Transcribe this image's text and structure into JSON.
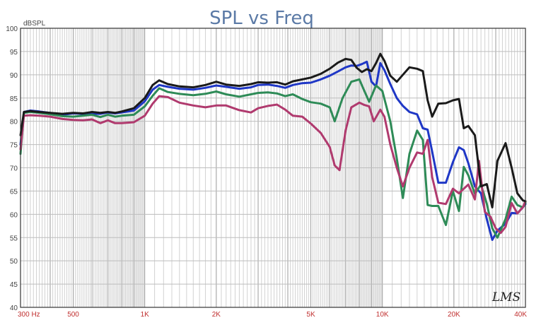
{
  "chart_data": {
    "type": "line",
    "title": "SPL vs Freq",
    "ylabel": "dBSPL",
    "xlabel": "",
    "xscale": "log",
    "xlim": [
      300,
      40000
    ],
    "ylim": [
      40,
      100
    ],
    "yticks": [
      40,
      45,
      50,
      55,
      60,
      65,
      70,
      75,
      80,
      85,
      90,
      95,
      100
    ],
    "xticks": [
      {
        "value": 300,
        "label": "300 Hz"
      },
      {
        "value": 500,
        "label": "500"
      },
      {
        "value": 1000,
        "label": "1K"
      },
      {
        "value": 2000,
        "label": "2K"
      },
      {
        "value": 5000,
        "label": "5K"
      },
      {
        "value": 10000,
        "label": "10K"
      },
      {
        "value": 20000,
        "label": "20K"
      },
      {
        "value": 40000,
        "label": "40K"
      }
    ],
    "grid": true,
    "watermark": "LMS",
    "series": [
      {
        "color": "#1a1a1a",
        "points": [
          [
            300,
            77
          ],
          [
            310,
            82
          ],
          [
            330,
            82.2
          ],
          [
            360,
            82
          ],
          [
            400,
            81.8
          ],
          [
            450,
            81.6
          ],
          [
            500,
            81.8
          ],
          [
            550,
            81.7
          ],
          [
            600,
            82
          ],
          [
            650,
            81.8
          ],
          [
            700,
            82
          ],
          [
            750,
            81.8
          ],
          [
            800,
            82.1
          ],
          [
            900,
            82.8
          ],
          [
            1000,
            85
          ],
          [
            1080,
            87.8
          ],
          [
            1150,
            88.8
          ],
          [
            1250,
            88
          ],
          [
            1400,
            87.5
          ],
          [
            1600,
            87.3
          ],
          [
            1800,
            87.8
          ],
          [
            2000,
            88.5
          ],
          [
            2200,
            87.9
          ],
          [
            2500,
            87.6
          ],
          [
            2800,
            88
          ],
          [
            3000,
            88.4
          ],
          [
            3300,
            88.3
          ],
          [
            3600,
            88.4
          ],
          [
            3900,
            87.9
          ],
          [
            4200,
            88.6
          ],
          [
            4600,
            89
          ],
          [
            5000,
            89.4
          ],
          [
            5500,
            90.2
          ],
          [
            6000,
            91.3
          ],
          [
            6500,
            92.6
          ],
          [
            7000,
            93.4
          ],
          [
            7400,
            93.2
          ],
          [
            7800,
            91.5
          ],
          [
            8200,
            90.6
          ],
          [
            8600,
            91.2
          ],
          [
            9000,
            90.8
          ],
          [
            9400,
            92.5
          ],
          [
            9800,
            94.5
          ],
          [
            10200,
            93
          ],
          [
            10800,
            89.8
          ],
          [
            11500,
            88.5
          ],
          [
            12200,
            90
          ],
          [
            13000,
            91.6
          ],
          [
            14000,
            91.3
          ],
          [
            14800,
            90.8
          ],
          [
            15500,
            84.5
          ],
          [
            16200,
            81
          ],
          [
            17200,
            83.8
          ],
          [
            18500,
            83.9
          ],
          [
            19800,
            84.5
          ],
          [
            21000,
            84.8
          ],
          [
            22000,
            78.5
          ],
          [
            23000,
            79
          ],
          [
            24500,
            77
          ],
          [
            26000,
            66
          ],
          [
            27500,
            66.5
          ],
          [
            29000,
            61.5
          ],
          [
            30500,
            71.5
          ],
          [
            33000,
            75.3
          ],
          [
            35000,
            70
          ],
          [
            37000,
            64.5
          ],
          [
            39000,
            63
          ],
          [
            40000,
            62.8
          ]
        ]
      },
      {
        "color": "#1f37c6",
        "points": [
          [
            300,
            75
          ],
          [
            310,
            82
          ],
          [
            330,
            82.3
          ],
          [
            360,
            82.1
          ],
          [
            400,
            81.8
          ],
          [
            450,
            81.4
          ],
          [
            500,
            81.7
          ],
          [
            550,
            81.6
          ],
          [
            600,
            81.6
          ],
          [
            650,
            81.6
          ],
          [
            700,
            81.9
          ],
          [
            750,
            81.7
          ],
          [
            800,
            81.9
          ],
          [
            900,
            82.3
          ],
          [
            1000,
            84.3
          ],
          [
            1080,
            86.8
          ],
          [
            1150,
            87.8
          ],
          [
            1250,
            87.4
          ],
          [
            1400,
            87
          ],
          [
            1600,
            86.8
          ],
          [
            1800,
            87.2
          ],
          [
            2000,
            87.7
          ],
          [
            2200,
            87.4
          ],
          [
            2500,
            87
          ],
          [
            2800,
            87.3
          ],
          [
            3000,
            87.8
          ],
          [
            3300,
            87.9
          ],
          [
            3600,
            87.6
          ],
          [
            3900,
            87.2
          ],
          [
            4200,
            87.8
          ],
          [
            4600,
            88.2
          ],
          [
            5000,
            88.3
          ],
          [
            5500,
            89
          ],
          [
            6000,
            89.8
          ],
          [
            6500,
            90.7
          ],
          [
            7000,
            91.6
          ],
          [
            7400,
            92
          ],
          [
            7800,
            91.9
          ],
          [
            8200,
            92.3
          ],
          [
            8600,
            92.8
          ],
          [
            9000,
            88.5
          ],
          [
            9400,
            87.5
          ],
          [
            9800,
            92.5
          ],
          [
            10200,
            91
          ],
          [
            10800,
            88
          ],
          [
            11500,
            85
          ],
          [
            12200,
            83.3
          ],
          [
            13000,
            82
          ],
          [
            14000,
            81.5
          ],
          [
            14800,
            78.5
          ],
          [
            15500,
            78.2
          ],
          [
            16200,
            73.5
          ],
          [
            17200,
            66.8
          ],
          [
            18500,
            66.8
          ],
          [
            19800,
            71.2
          ],
          [
            21000,
            74.4
          ],
          [
            22000,
            73.8
          ],
          [
            23000,
            71
          ],
          [
            24500,
            66
          ],
          [
            26000,
            64.5
          ],
          [
            27500,
            59
          ],
          [
            29000,
            54.5
          ],
          [
            30500,
            56.5
          ],
          [
            33000,
            58
          ],
          [
            35000,
            60.3
          ],
          [
            37000,
            60.2
          ],
          [
            39000,
            61.5
          ],
          [
            40000,
            62.2
          ]
        ]
      },
      {
        "color": "#2e8b57",
        "points": [
          [
            300,
            73
          ],
          [
            310,
            81.8
          ],
          [
            330,
            82
          ],
          [
            360,
            81.8
          ],
          [
            400,
            81.5
          ],
          [
            450,
            81.1
          ],
          [
            500,
            81
          ],
          [
            550,
            81.2
          ],
          [
            600,
            81.4
          ],
          [
            650,
            80.9
          ],
          [
            700,
            81.4
          ],
          [
            750,
            81
          ],
          [
            800,
            81.2
          ],
          [
            900,
            81.4
          ],
          [
            1000,
            83.2
          ],
          [
            1080,
            85.5
          ],
          [
            1150,
            87.1
          ],
          [
            1250,
            86.3
          ],
          [
            1400,
            85.9
          ],
          [
            1600,
            85.6
          ],
          [
            1800,
            85.9
          ],
          [
            2000,
            86.4
          ],
          [
            2200,
            85.8
          ],
          [
            2500,
            85.3
          ],
          [
            2800,
            85.8
          ],
          [
            3000,
            86.1
          ],
          [
            3300,
            86.2
          ],
          [
            3600,
            86
          ],
          [
            3900,
            85.4
          ],
          [
            4200,
            85.8
          ],
          [
            4600,
            84.8
          ],
          [
            5000,
            84.1
          ],
          [
            5500,
            83.8
          ],
          [
            6000,
            83
          ],
          [
            6300,
            80
          ],
          [
            6800,
            85
          ],
          [
            7400,
            88.5
          ],
          [
            8000,
            89
          ],
          [
            8400,
            86.5
          ],
          [
            8800,
            84.2
          ],
          [
            9400,
            87.7
          ],
          [
            10000,
            86.5
          ],
          [
            10800,
            80
          ],
          [
            11500,
            72
          ],
          [
            12200,
            63.5
          ],
          [
            13000,
            73
          ],
          [
            14000,
            78
          ],
          [
            14800,
            76
          ],
          [
            15500,
            62
          ],
          [
            16200,
            61.8
          ],
          [
            17200,
            61.8
          ],
          [
            18500,
            57.7
          ],
          [
            19800,
            65
          ],
          [
            21000,
            60.7
          ],
          [
            22000,
            70.2
          ],
          [
            23000,
            68.4
          ],
          [
            24500,
            64.4
          ],
          [
            26000,
            66.4
          ],
          [
            27500,
            62.3
          ],
          [
            29000,
            57
          ],
          [
            30500,
            55
          ],
          [
            33000,
            59
          ],
          [
            35000,
            63.8
          ],
          [
            37000,
            62
          ],
          [
            39000,
            61.5
          ],
          [
            40000,
            62.5
          ]
        ]
      },
      {
        "color": "#b03a6e",
        "points": [
          [
            300,
            74
          ],
          [
            310,
            81.2
          ],
          [
            330,
            81.3
          ],
          [
            360,
            81.2
          ],
          [
            400,
            81
          ],
          [
            450,
            80.5
          ],
          [
            500,
            80.3
          ],
          [
            550,
            80.2
          ],
          [
            600,
            80.4
          ],
          [
            650,
            79.6
          ],
          [
            700,
            80.2
          ],
          [
            750,
            79.6
          ],
          [
            800,
            79.6
          ],
          [
            900,
            79.8
          ],
          [
            1000,
            81.2
          ],
          [
            1080,
            83.8
          ],
          [
            1150,
            85.4
          ],
          [
            1250,
            85.2
          ],
          [
            1400,
            84
          ],
          [
            1600,
            83.4
          ],
          [
            1800,
            83
          ],
          [
            2000,
            83.4
          ],
          [
            2200,
            83.4
          ],
          [
            2500,
            82.4
          ],
          [
            2800,
            81.9
          ],
          [
            3000,
            82.8
          ],
          [
            3300,
            83.3
          ],
          [
            3600,
            83.6
          ],
          [
            3900,
            82.5
          ],
          [
            4200,
            81.2
          ],
          [
            4600,
            81
          ],
          [
            5000,
            79.5
          ],
          [
            5500,
            77.5
          ],
          [
            6000,
            74.5
          ],
          [
            6300,
            70.5
          ],
          [
            6600,
            69.5
          ],
          [
            7000,
            78
          ],
          [
            7400,
            83
          ],
          [
            8000,
            84
          ],
          [
            8400,
            83.5
          ],
          [
            8800,
            83.2
          ],
          [
            9200,
            80
          ],
          [
            9800,
            82.5
          ],
          [
            10200,
            81
          ],
          [
            10800,
            75
          ],
          [
            11500,
            70
          ],
          [
            12200,
            66
          ],
          [
            13000,
            70
          ],
          [
            14000,
            73.3
          ],
          [
            14800,
            73
          ],
          [
            15500,
            76
          ],
          [
            16200,
            68
          ],
          [
            17200,
            62.5
          ],
          [
            18500,
            62.2
          ],
          [
            19800,
            65.5
          ],
          [
            21000,
            64.5
          ],
          [
            22000,
            65.5
          ],
          [
            23000,
            66.4
          ],
          [
            24500,
            63.2
          ],
          [
            25500,
            71.5
          ],
          [
            27000,
            60.5
          ],
          [
            28500,
            59.5
          ],
          [
            30000,
            57
          ],
          [
            31500,
            56
          ],
          [
            33000,
            57.3
          ],
          [
            35000,
            62.4
          ],
          [
            37000,
            60.2
          ],
          [
            39000,
            61.5
          ],
          [
            40000,
            62.8
          ]
        ]
      }
    ]
  }
}
